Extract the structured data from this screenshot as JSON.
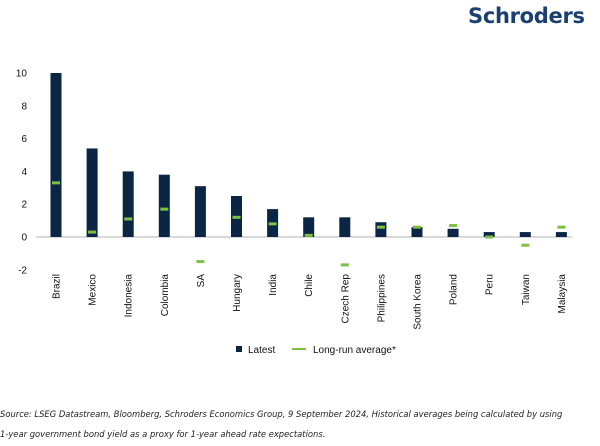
{
  "brand": {
    "logo_text": "Schroders",
    "logo_color": "#1b3f6e"
  },
  "chart_data": {
    "type": "bar",
    "categories": [
      "Brazil",
      "Mexico",
      "Indonesia",
      "Colombia",
      "SA",
      "Hungary",
      "India",
      "Chile",
      "Czech Rep",
      "Philippines",
      "South Korea",
      "Poland",
      "Peru",
      "Taiwan",
      "Malaysia"
    ],
    "series": [
      {
        "name": "Latest",
        "kind": "bar",
        "color": "#0b2545",
        "values": [
          10.0,
          5.4,
          4.0,
          3.8,
          3.1,
          2.5,
          1.7,
          1.2,
          1.2,
          0.9,
          0.6,
          0.5,
          0.3,
          0.3,
          0.3
        ]
      },
      {
        "name": "Long-run average*",
        "kind": "marker",
        "color": "#7cc143",
        "values": [
          3.3,
          0.3,
          1.1,
          1.7,
          -1.5,
          1.2,
          0.8,
          0.1,
          -1.7,
          0.6,
          0.6,
          0.7,
          0.0,
          -0.5,
          0.6
        ]
      }
    ],
    "y_ticks": [
      10,
      8,
      6,
      4,
      2,
      0,
      -2
    ],
    "ylim": [
      -2,
      10
    ],
    "grid": false,
    "legend_position": "bottom",
    "title": "",
    "xlabel": "",
    "ylabel": ""
  },
  "source": {
    "line1": "Source: LSEG Datastream, Bloomberg, Schroders Economics Group, 9 September 2024, Historical averages being calculated by using",
    "line2": "1-year government bond yield as a proxy for 1-year ahead rate expectations."
  }
}
